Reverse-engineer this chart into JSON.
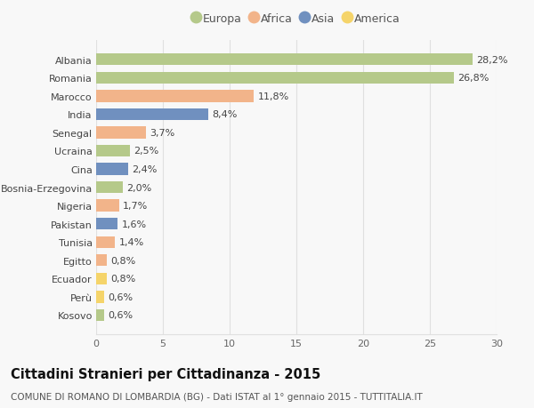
{
  "countries": [
    "Kosovo",
    "Perù",
    "Ecuador",
    "Egitto",
    "Tunisia",
    "Pakistan",
    "Nigeria",
    "Bosnia-Erzegovina",
    "Cina",
    "Ucraina",
    "Senegal",
    "India",
    "Marocco",
    "Romania",
    "Albania"
  ],
  "values": [
    0.6,
    0.6,
    0.8,
    0.8,
    1.4,
    1.6,
    1.7,
    2.0,
    2.4,
    2.5,
    3.7,
    8.4,
    11.8,
    26.8,
    28.2
  ],
  "labels": [
    "0,6%",
    "0,6%",
    "0,8%",
    "0,8%",
    "1,4%",
    "1,6%",
    "1,7%",
    "2,0%",
    "2,4%",
    "2,5%",
    "3,7%",
    "8,4%",
    "11,8%",
    "26,8%",
    "28,2%"
  ],
  "continents": [
    "Europa",
    "America",
    "America",
    "Africa",
    "Africa",
    "Asia",
    "Africa",
    "Europa",
    "Asia",
    "Europa",
    "Africa",
    "Asia",
    "Africa",
    "Europa",
    "Europa"
  ],
  "colors": {
    "Europa": "#b5c98a",
    "Africa": "#f2b48a",
    "Asia": "#7090bf",
    "America": "#f5d46a"
  },
  "legend_order": [
    "Europa",
    "Africa",
    "Asia",
    "America"
  ],
  "xlim": [
    0,
    30
  ],
  "xticks": [
    0,
    5,
    10,
    15,
    20,
    25,
    30
  ],
  "title": "Cittadini Stranieri per Cittadinanza - 2015",
  "subtitle": "COMUNE DI ROMANO DI LOMBARDIA (BG) - Dati ISTAT al 1° gennaio 2015 - TUTTITALIA.IT",
  "bg_color": "#f8f8f8",
  "grid_color": "#e0e0e0",
  "bar_height": 0.65,
  "label_fontsize": 8,
  "tick_fontsize": 8,
  "title_fontsize": 10.5,
  "subtitle_fontsize": 7.5
}
